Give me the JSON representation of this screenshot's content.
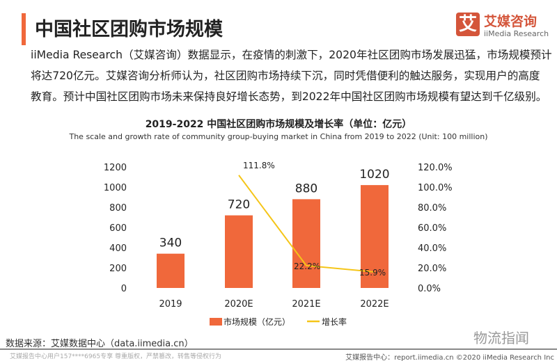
{
  "header": {
    "title": "中国社区团购市场规模",
    "accent_color": "#f0683b"
  },
  "logo": {
    "mark": "艾",
    "cn": "艾媒咨询",
    "en": "iiMedia Research"
  },
  "paragraph": [
    "iiMedia Research（艾媒咨询）数据显示，在疫情的刺激下，2020年社区团购市场发展迅猛，市场规模预计",
    "将达720亿元。艾媒咨询分析师认为，社区团购市场持续下沉，同时凭借便利的触达服务，实现用户的高度",
    "教育。预计中国社区团购市场未来保持良好增长态势，到2022年中国社区团购市场规模有望达到千亿级别。"
  ],
  "chart_data": {
    "type": "bar+line",
    "title": "2019-2022 中国社区团购市场规模及增长率（单位：亿元）",
    "subtitle": "The scale and growth rate of community group-buying market in China from 2019 to 2022 (Unit: 100 million)",
    "categories": [
      "2019",
      "2020E",
      "2021E",
      "2022E"
    ],
    "series": [
      {
        "name": "市场规模（亿元）",
        "type": "bar",
        "axis": "left",
        "color": "#f0683b",
        "values": [
          340,
          720,
          880,
          1020
        ],
        "labels": [
          "340",
          "720",
          "880",
          "1020"
        ]
      },
      {
        "name": "增长率",
        "type": "line",
        "axis": "right",
        "color": "#f5c518",
        "values": [
          null,
          111.8,
          22.2,
          15.9
        ],
        "labels": [
          "",
          "111.8%",
          "22.2%",
          "15.9%"
        ]
      }
    ],
    "y_left": {
      "range": [
        0,
        1200
      ],
      "ticks": [
        "0",
        "200",
        "400",
        "600",
        "800",
        "1000",
        "1200"
      ]
    },
    "y_right": {
      "range": [
        0,
        120
      ],
      "ticks": [
        "0.0%",
        "20.0%",
        "40.0%",
        "60.0%",
        "80.0%",
        "100.0%",
        "120.0%"
      ]
    },
    "grid": false,
    "legend": "bottom"
  },
  "footer": {
    "source": "数据来源：艾媒数据中心（data.iimedia.cn）",
    "watermark": "物流指闻",
    "left": "艾媒报告中心用户157****6965专享 尊重版权，严禁篡改，转售等侵权行为",
    "right": "艾媒报告中心：report.iimedia.cn   ©2020  iiMedia Research  Inc"
  }
}
